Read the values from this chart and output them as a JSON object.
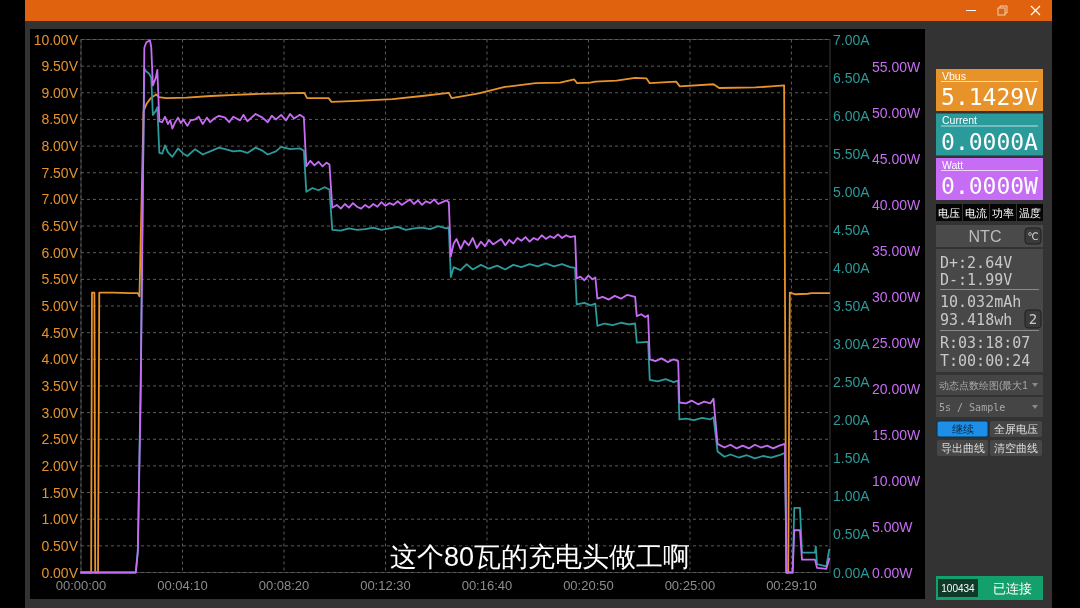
{
  "chart_data": [
    {
      "type": "line",
      "xlim": [
        0,
        1845
      ],
      "xticks": [
        {
          "value": 0,
          "label": "00:00:00"
        },
        {
          "value": 250,
          "label": "00:04:10"
        },
        {
          "value": 500,
          "label": "00:08:20"
        },
        {
          "value": 750,
          "label": "00:12:30"
        },
        {
          "value": 1000,
          "label": "00:16:40"
        },
        {
          "value": 1250,
          "label": "00:20:50"
        },
        {
          "value": 1500,
          "label": "00:25:00"
        },
        {
          "value": 1750,
          "label": "00:29:10"
        }
      ],
      "ylim": [
        0,
        10
      ],
      "yticks": [
        {
          "value": 0,
          "label": "0.00V"
        },
        {
          "value": 0.5,
          "label": "0.50V"
        },
        {
          "value": 1,
          "label": "1.00V"
        },
        {
          "value": 1.5,
          "label": "1.50V"
        },
        {
          "value": 2,
          "label": "2.00V"
        },
        {
          "value": 2.5,
          "label": "2.50V"
        },
        {
          "value": 3,
          "label": "3.00V"
        },
        {
          "value": 3.5,
          "label": "3.50V"
        },
        {
          "value": 4,
          "label": "4.00V"
        },
        {
          "value": 4.5,
          "label": "4.50V"
        },
        {
          "value": 5,
          "label": "5.00V"
        },
        {
          "value": 5.5,
          "label": "5.50V"
        },
        {
          "value": 6,
          "label": "6.00V"
        },
        {
          "value": 6.5,
          "label": "6.50V"
        },
        {
          "value": 7,
          "label": "7.00V"
        },
        {
          "value": 7.5,
          "label": "7.50V"
        },
        {
          "value": 8,
          "label": "8.00V"
        },
        {
          "value": 8.5,
          "label": "8.50V"
        },
        {
          "value": 9,
          "label": "9.00V"
        },
        {
          "value": 9.5,
          "label": "9.50V"
        },
        {
          "value": 10,
          "label": "10.00V"
        }
      ],
      "y2lim": [
        0,
        7
      ],
      "y2ticks": [
        {
          "value": 0,
          "label": "0.00A"
        },
        {
          "value": 0.5,
          "label": "0.50A"
        },
        {
          "value": 1,
          "label": "1.00A"
        },
        {
          "value": 1.5,
          "label": "1.50A"
        },
        {
          "value": 2,
          "label": "2.00A"
        },
        {
          "value": 2.5,
          "label": "2.50A"
        },
        {
          "value": 3,
          "label": "3.00A"
        },
        {
          "value": 3.5,
          "label": "3.50A"
        },
        {
          "value": 4,
          "label": "4.00A"
        },
        {
          "value": 4.5,
          "label": "4.50A"
        },
        {
          "value": 5,
          "label": "5.00A"
        },
        {
          "value": 5.5,
          "label": "5.50A"
        },
        {
          "value": 6,
          "label": "6.00A"
        },
        {
          "value": 6.5,
          "label": "6.50A"
        },
        {
          "value": 7,
          "label": "7.00A"
        }
      ],
      "y3lim": [
        0,
        58
      ],
      "y3ticks": [
        {
          "value": 0,
          "label": "0.00W"
        },
        {
          "value": 5,
          "label": "5.00W"
        },
        {
          "value": 10,
          "label": "10.00W"
        },
        {
          "value": 15,
          "label": "15.00W"
        },
        {
          "value": 20,
          "label": "20.00W"
        },
        {
          "value": 25,
          "label": "25.00W"
        },
        {
          "value": 30,
          "label": "30.00W"
        },
        {
          "value": 35,
          "label": "35.00W"
        },
        {
          "value": 40,
          "label": "40.00W"
        },
        {
          "value": 45,
          "label": "45.00W"
        },
        {
          "value": 50,
          "label": "50.00W"
        },
        {
          "value": 55,
          "label": "55.00W"
        }
      ],
      "grid": true,
      "annotations": [
        "这个80瓦的充电头做工啊"
      ],
      "series": [
        {
          "color": "#e8932a",
          "x": [
            0,
            25,
            27,
            33,
            35,
            42,
            45,
            80,
            120,
            140,
            144,
            154,
            162,
            172,
            185,
            192,
            210,
            260,
            320,
            380,
            440,
            500,
            550,
            557,
            610,
            617,
            680,
            767,
            840,
            906,
            913,
            980,
            1044,
            1120,
            1180,
            1215,
            1222,
            1254,
            1267,
            1319,
            1365,
            1393,
            1401,
            1466,
            1475,
            1558,
            1572,
            1661,
            1700,
            1732,
            1737,
            1742,
            1746,
            1760,
            1790,
            1800,
            1843
          ],
          "values": [
            0,
            0,
            5.25,
            5.25,
            0,
            0,
            5.25,
            5.25,
            5.24,
            5.24,
            5.18,
            8.65,
            8.8,
            8.9,
            8.97,
            8.92,
            8.9,
            8.91,
            8.94,
            8.96,
            8.98,
            8.99,
            9.0,
            8.9,
            8.9,
            8.83,
            8.85,
            8.88,
            8.94,
            9.0,
            8.9,
            8.99,
            9.11,
            9.18,
            9.19,
            9.25,
            9.18,
            9.19,
            9.21,
            9.23,
            9.28,
            9.27,
            9.18,
            9.21,
            9.12,
            9.16,
            9.09,
            9.1,
            9.12,
            9.14,
            0,
            0,
            5.25,
            5.22,
            5.23,
            5.24,
            5.24
          ]
        },
        {
          "color": "#2a9a9a",
          "axis": "y2",
          "x": [
            0,
            135,
            140,
            147,
            151,
            156,
            161,
            168,
            173,
            177,
            184,
            188,
            193,
            200,
            207,
            214,
            225,
            239,
            252,
            262,
            281,
            300,
            318,
            340,
            355,
            375,
            392,
            410,
            430,
            447,
            460,
            480,
            493,
            515,
            539,
            549,
            555,
            570,
            585,
            600,
            612,
            619,
            640,
            660,
            680,
            700,
            720,
            740,
            760,
            780,
            800,
            820,
            840,
            860,
            880,
            900,
            906,
            911,
            918,
            935,
            950,
            965,
            985,
            1005,
            1025,
            1045,
            1065,
            1085,
            1105,
            1125,
            1145,
            1165,
            1185,
            1205,
            1217,
            1221,
            1240,
            1255,
            1267,
            1272,
            1290,
            1310,
            1330,
            1350,
            1365,
            1369,
            1397,
            1401,
            1420,
            1440,
            1460,
            1471,
            1474,
            1490,
            1510,
            1530,
            1550,
            1558,
            1568,
            1585,
            1600,
            1620,
            1640,
            1660,
            1680,
            1700,
            1720,
            1734,
            1738,
            1753,
            1757,
            1771,
            1776,
            1808,
            1810,
            1813,
            1836,
            1843
          ],
          "values": [
            0,
            0,
            0.3,
            2.5,
            4.5,
            6.62,
            6.58,
            6.55,
            6.5,
            6.01,
            6.06,
            6.11,
            5.51,
            5.5,
            5.61,
            5.52,
            5.46,
            5.57,
            5.5,
            5.47,
            5.56,
            5.49,
            5.53,
            5.58,
            5.56,
            5.53,
            5.54,
            5.51,
            5.58,
            5.54,
            5.49,
            5.53,
            5.59,
            5.56,
            5.57,
            5.54,
            5.0,
            5.05,
            5.02,
            5.06,
            5.03,
            4.5,
            4.49,
            4.52,
            4.5,
            4.51,
            4.53,
            4.5,
            4.52,
            4.54,
            4.5,
            4.52,
            4.53,
            4.51,
            4.55,
            4.52,
            4.53,
            3.88,
            4.01,
            3.97,
            4.05,
            3.98,
            4.04,
            3.99,
            4.03,
            3.98,
            4.04,
            4.01,
            4.05,
            4.02,
            4.06,
            4.02,
            4.05,
            4.01,
            4.0,
            3.52,
            3.54,
            3.51,
            3.53,
            3.24,
            3.27,
            3.25,
            3.28,
            3.26,
            3.27,
            3.02,
            3.03,
            2.53,
            2.51,
            2.54,
            2.5,
            2.52,
            2.01,
            2.02,
            2.0,
            2.03,
            2.01,
            2.04,
            1.59,
            1.52,
            1.55,
            1.51,
            1.54,
            1.5,
            1.53,
            1.51,
            1.54,
            1.57,
            0,
            0,
            0.85,
            0.85,
            0.26,
            0.26,
            0.34,
            0.11,
            0.08,
            0.3
          ]
        },
        {
          "color": "#c76cf5",
          "axis": "y3",
          "x": [
            0,
            135,
            140,
            147,
            151,
            156,
            161,
            170,
            173,
            177,
            184,
            188,
            193,
            200,
            207,
            214,
            220,
            225,
            232,
            239,
            246,
            252,
            262,
            270,
            281,
            290,
            300,
            310,
            318,
            328,
            340,
            355,
            365,
            375,
            392,
            400,
            410,
            420,
            430,
            447,
            460,
            470,
            480,
            493,
            505,
            515,
            525,
            539,
            549,
            555,
            565,
            575,
            585,
            595,
            605,
            612,
            619,
            630,
            640,
            650,
            660,
            670,
            680,
            690,
            700,
            710,
            720,
            730,
            740,
            750,
            760,
            770,
            780,
            790,
            800,
            810,
            820,
            830,
            840,
            850,
            860,
            870,
            880,
            890,
            900,
            906,
            911,
            918,
            925,
            935,
            945,
            955,
            965,
            975,
            985,
            995,
            1005,
            1015,
            1025,
            1035,
            1045,
            1055,
            1065,
            1075,
            1085,
            1095,
            1105,
            1115,
            1125,
            1135,
            1145,
            1155,
            1165,
            1175,
            1185,
            1195,
            1205,
            1217,
            1221,
            1230,
            1240,
            1250,
            1260,
            1267,
            1272,
            1285,
            1300,
            1315,
            1330,
            1345,
            1365,
            1369,
            1380,
            1390,
            1397,
            1401,
            1415,
            1430,
            1445,
            1460,
            1471,
            1474,
            1490,
            1505,
            1520,
            1535,
            1550,
            1558,
            1568,
            1585,
            1600,
            1615,
            1630,
            1645,
            1660,
            1675,
            1690,
            1705,
            1720,
            1734,
            1738,
            1753,
            1757,
            1771,
            1776,
            1808,
            1813,
            1836,
            1843
          ],
          "values": [
            0,
            0,
            2.2,
            19.3,
            35.6,
            57.1,
            57.7,
            57.9,
            57.2,
            53.0,
            53.8,
            54.7,
            49.1,
            49.0,
            49.6,
            48.8,
            49.2,
            48.3,
            49.0,
            49.5,
            48.9,
            49.3,
            48.6,
            49.2,
            49.3,
            49.6,
            48.8,
            49.5,
            49.0,
            49.4,
            49.7,
            49.5,
            49.0,
            49.6,
            49.2,
            49.8,
            49.1,
            49.5,
            49.9,
            49.5,
            49.0,
            49.7,
            49.3,
            49.8,
            49.2,
            49.9,
            49.4,
            49.8,
            49.5,
            44.2,
            44.8,
            44.3,
            44.7,
            44.2,
            44.6,
            44.4,
            39.7,
            40.0,
            39.6,
            40.1,
            39.7,
            40.2,
            39.8,
            39.6,
            40.0,
            39.7,
            40.1,
            39.8,
            40.3,
            39.9,
            40.2,
            40.0,
            40.4,
            40.0,
            40.3,
            40.6,
            40.1,
            40.5,
            40.0,
            40.4,
            40.2,
            40.6,
            40.1,
            40.3,
            40.5,
            40.3,
            34.4,
            35.8,
            36.3,
            35.2,
            36.1,
            35.6,
            36.4,
            35.3,
            36.0,
            35.5,
            36.2,
            35.7,
            36.0,
            36.3,
            35.6,
            36.2,
            35.8,
            36.4,
            36.1,
            36.5,
            36.0,
            36.4,
            36.2,
            36.7,
            36.3,
            36.6,
            36.4,
            36.8,
            36.4,
            36.7,
            36.5,
            36.6,
            32.0,
            32.2,
            31.8,
            32.3,
            31.9,
            32.1,
            29.8,
            30.0,
            29.7,
            30.1,
            29.8,
            30.2,
            30.0,
            27.9,
            28.1,
            27.8,
            28.0,
            23.2,
            23.0,
            23.3,
            22.9,
            23.2,
            23.0,
            18.5,
            18.4,
            18.7,
            18.3,
            18.6,
            18.4,
            18.9,
            14.0,
            13.6,
            13.9,
            13.5,
            13.8,
            13.5,
            13.9,
            13.6,
            13.8,
            13.5,
            13.8,
            14.0,
            0,
            0,
            4.6,
            4.6,
            1.4,
            1.4,
            0.5,
            0.4,
            1.5
          ]
        }
      ]
    },
    {
      "type": "other",
      "annotations": [
        "Vbus",
        "5.1429V",
        "Current",
        "0.0000A",
        "Watt",
        "0.0000W",
        "电压",
        "电流",
        "功率",
        "温度",
        "NTC",
        "℃",
        "D+:2.64V",
        "D-:1.99V",
        "10.032mAh",
        "93.418wh",
        "2",
        "R:03:18:07",
        "T:00:00:24",
        "动态点数绘图(最大1",
        "5s / Sample",
        "继续",
        "全屏电压",
        "导出曲线",
        "清空曲线",
        "100434",
        "已连接"
      ]
    }
  ]
}
